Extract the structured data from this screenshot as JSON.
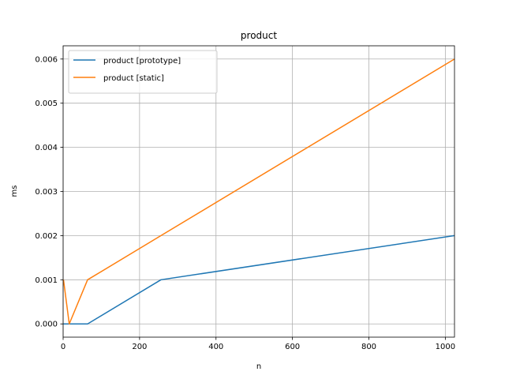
{
  "chart_data": {
    "type": "line",
    "title": "product",
    "xlabel": "n",
    "ylabel": "ms",
    "xlim": [
      0,
      1024
    ],
    "ylim": [
      -0.0003,
      0.0063
    ],
    "x_ticks": [
      0,
      200,
      400,
      600,
      800,
      1000
    ],
    "x_tick_labels": [
      "0",
      "200",
      "400",
      "600",
      "800",
      "1000"
    ],
    "y_ticks": [
      0.0,
      0.001,
      0.002,
      0.003,
      0.004,
      0.005,
      0.006
    ],
    "y_tick_labels": [
      "0.000",
      "0.001",
      "0.002",
      "0.003",
      "0.004",
      "0.005",
      "0.006"
    ],
    "grid": true,
    "legend_position": "top-left",
    "series": [
      {
        "name": "product [prototype]",
        "color": "#1f77b4",
        "x": [
          1,
          16,
          64,
          256,
          1024
        ],
        "y": [
          0.0,
          0.0,
          0.0,
          0.001,
          0.002
        ]
      },
      {
        "name": "product [static]",
        "color": "#ff7f0e",
        "x": [
          1,
          16,
          64,
          256,
          1024
        ],
        "y": [
          0.001,
          0.0,
          0.001,
          0.002,
          0.006
        ]
      }
    ]
  }
}
